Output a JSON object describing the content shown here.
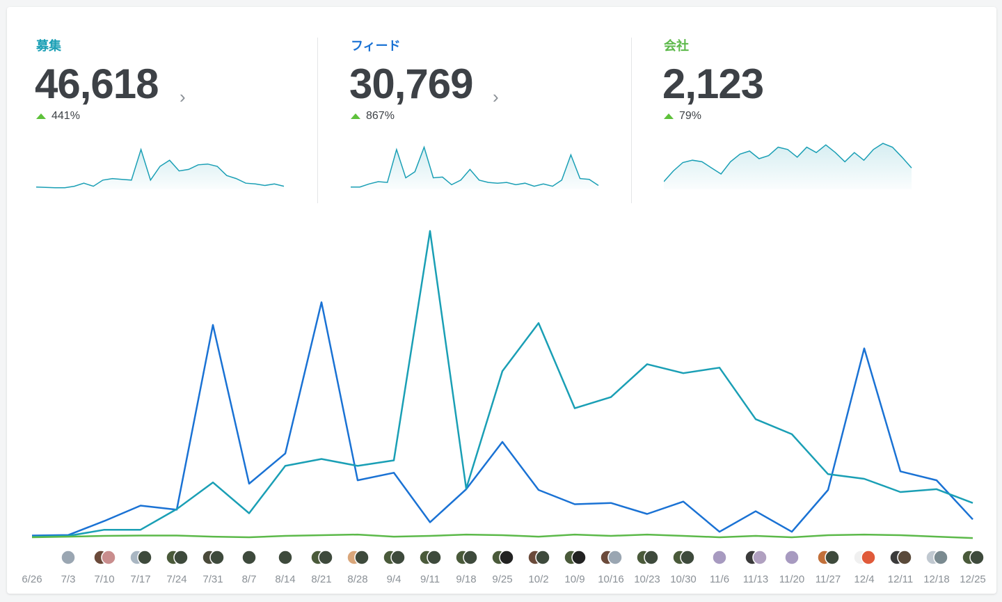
{
  "metrics": [
    {
      "label": "募集",
      "value": "46,618",
      "delta": "441%",
      "color": "#1a9fb5",
      "chevron": true,
      "spark": [
        3,
        2.5,
        2,
        2,
        4,
        8,
        4,
        12,
        14,
        13,
        12,
        52,
        12,
        30,
        38,
        24,
        26,
        32,
        33,
        30,
        18,
        14,
        8,
        7,
        5,
        7,
        4
      ]
    },
    {
      "label": "フィード",
      "value": "30,769",
      "delta": "867%",
      "color": "#1a72d4",
      "chevron": true,
      "spark": [
        3,
        3,
        7,
        10,
        9,
        52,
        15,
        23,
        55,
        15,
        16,
        6,
        12,
        26,
        12,
        9,
        8,
        9,
        6,
        8,
        4,
        7,
        4,
        12,
        45,
        14,
        13,
        5
      ]
    },
    {
      "label": "会社",
      "value": "2,123",
      "delta": "79%",
      "color": "#5cb94a",
      "chevron": false,
      "spark": [
        10,
        24,
        35,
        38,
        36,
        28,
        20,
        36,
        46,
        50,
        40,
        44,
        55,
        52,
        42,
        55,
        48,
        58,
        48,
        36,
        48,
        38,
        52,
        60,
        55,
        42,
        28
      ]
    }
  ],
  "chart_data": {
    "type": "line",
    "categories": [
      "6/26",
      "7/3",
      "7/10",
      "7/17",
      "7/24",
      "7/31",
      "8/7",
      "8/14",
      "8/21",
      "8/28",
      "9/4",
      "9/11",
      "9/18",
      "9/25",
      "10/2",
      "10/9",
      "10/16",
      "10/23",
      "10/30",
      "11/6",
      "11/13",
      "11/20",
      "11/27",
      "12/4",
      "12/11",
      "12/18",
      "12/25"
    ],
    "series": [
      {
        "color": "#1a72d4",
        "values": [
          2.0,
          2.3,
          11.3,
          21.1,
          18.5,
          136.5,
          35.1,
          54.4,
          151.0,
          37.3,
          42.1,
          10.5,
          31.6,
          61.8,
          31.1,
          22.0,
          22.8,
          15.8,
          23.7,
          4.4,
          17.5,
          4.4,
          31.1,
          121.5,
          43.0,
          37.3,
          12.3
        ]
      },
      {
        "color": "#1a9fb5",
        "values": [
          1.3,
          1.8,
          5.7,
          5.7,
          18.9,
          35.9,
          16.2,
          46.5,
          50.9,
          46.5,
          50.0,
          196.5,
          32.0,
          107.0,
          137.7,
          83.3,
          90.4,
          111.4,
          105.7,
          109.2,
          76.3,
          66.7,
          41.2,
          38.2,
          29.8,
          31.6,
          22.8
        ]
      },
      {
        "color": "#5cb94a",
        "values": [
          0.9,
          1.3,
          1.8,
          2.0,
          2.0,
          1.3,
          0.9,
          1.8,
          2.2,
          2.6,
          1.3,
          1.8,
          2.6,
          2.2,
          1.3,
          2.6,
          1.8,
          2.6,
          1.8,
          0.9,
          1.8,
          0.9,
          2.2,
          2.6,
          2.2,
          1.3,
          0.4
        ]
      }
    ],
    "ylim": [
      0,
      200
    ],
    "grid": false,
    "legend": "none",
    "avatars": [
      [],
      [
        "#9aa6b2"
      ],
      [
        "#6b4a3a",
        "#c98d8d"
      ],
      [
        "#a9b6c2",
        "#3e4a3c"
      ],
      [
        "#4a5a3a",
        "#3e4a3c"
      ],
      [
        "#4a4a3a",
        "#3e4a3c"
      ],
      [
        "#3e4a3c"
      ],
      [
        "#3e4a3c"
      ],
      [
        "#4a5a3a",
        "#3e4a3c"
      ],
      [
        "#d9a67a",
        "#3e4a3c"
      ],
      [
        "#4a5a3a",
        "#3e4a3c"
      ],
      [
        "#4a5a3a",
        "#3e4a3c"
      ],
      [
        "#4a5a3a",
        "#3e4a3c"
      ],
      [
        "#4a5a3a",
        "#222222"
      ],
      [
        "#6a4a3a",
        "#3e4a3c"
      ],
      [
        "#4a5a3a",
        "#222222"
      ],
      [
        "#6b4a3a",
        "#9aa6b2"
      ],
      [
        "#4a5a3a",
        "#3e4a3c"
      ],
      [
        "#4a5a3a",
        "#3e4a3c"
      ],
      [
        "#a79ac0"
      ],
      [
        "#3a3a3a",
        "#b0a0c0"
      ],
      [
        "#a79ac0"
      ],
      [
        "#c2703a",
        "#3e4a3c"
      ],
      [
        "#f0f0f0",
        "#e05a3a"
      ],
      [
        "#3a3a3a",
        "#5a4a3a"
      ],
      [
        "#c0c8d0",
        "#7a8a90"
      ],
      [
        "#4a5a3a",
        "#3e4a3c"
      ]
    ]
  }
}
